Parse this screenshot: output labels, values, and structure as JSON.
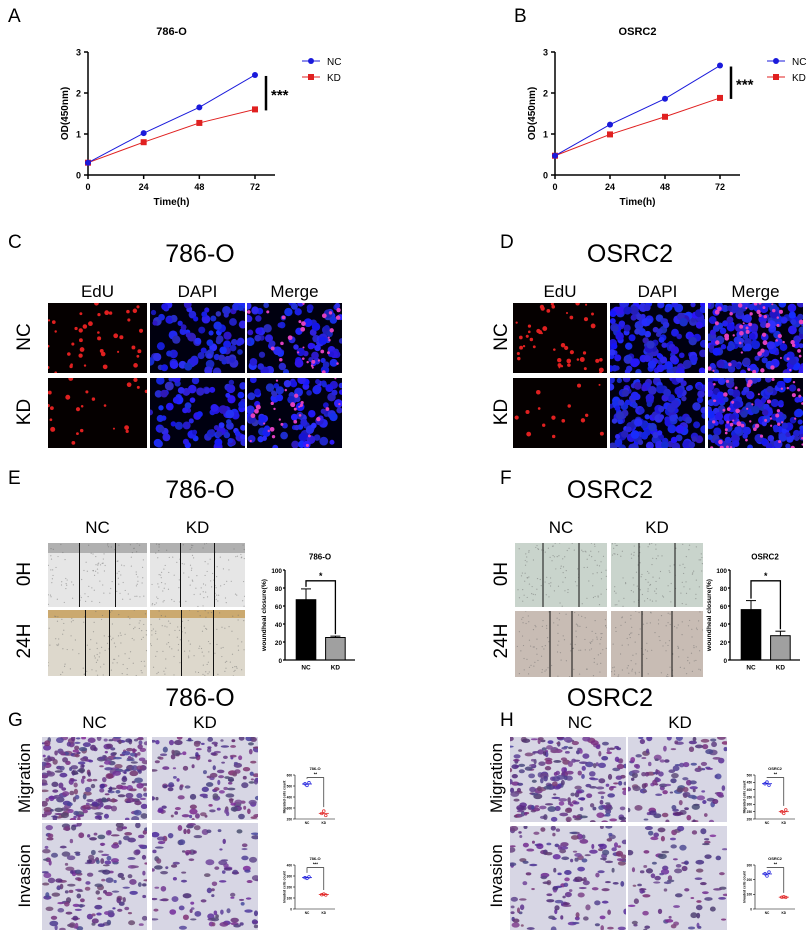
{
  "panels": {
    "A": {
      "label": "A"
    },
    "B": {
      "label": "B"
    },
    "C": {
      "label": "C",
      "title": "786-O",
      "columns": [
        "EdU",
        "DAPI",
        "Merge"
      ],
      "rows": [
        "NC",
        "KD"
      ]
    },
    "D": {
      "label": "D",
      "title": "OSRC2",
      "columns": [
        "EdU",
        "DAPI",
        "Merge"
      ],
      "rows": [
        "NC",
        "KD"
      ]
    },
    "E": {
      "label": "E",
      "title": "786-O",
      "columns": [
        "NC",
        "KD"
      ],
      "rows": [
        "0H",
        "24H"
      ]
    },
    "F": {
      "label": "F",
      "title": "OSRC2",
      "columns": [
        "NC",
        "KD"
      ],
      "rows": [
        "0H",
        "24H"
      ]
    },
    "G": {
      "label": "G",
      "title": "786-O",
      "columns": [
        "NC",
        "KD"
      ],
      "rows": [
        "Migration",
        "Invasion"
      ]
    },
    "H": {
      "label": "H",
      "title": "OSRC2",
      "columns": [
        "NC",
        "KD"
      ],
      "rows": [
        "Migration",
        "Invasion"
      ]
    }
  },
  "colors": {
    "NC": "#1a1adb",
    "KD": "#e02020",
    "bar_NC": "#000000",
    "bar_KD": "#a0a0a0"
  },
  "chart_data": [
    {
      "id": "A",
      "type": "line",
      "title": "786-O",
      "xlabel": "Time(h)",
      "ylabel": "OD(450nm)",
      "x": [
        0,
        24,
        48,
        72
      ],
      "xticks": [
        "0",
        "24",
        "48",
        "72"
      ],
      "ylim": [
        0,
        3
      ],
      "yticks": [
        "0",
        "1",
        "2",
        "3"
      ],
      "series": [
        {
          "name": "NC",
          "values": [
            0.3,
            1.02,
            1.65,
            2.44
          ],
          "marker": "circle"
        },
        {
          "name": "KD",
          "values": [
            0.3,
            0.8,
            1.27,
            1.6
          ],
          "marker": "square"
        }
      ],
      "significance": "***",
      "legend": "top-right",
      "grid": false
    },
    {
      "id": "B",
      "type": "line",
      "title": "OSRC2",
      "xlabel": "Time(h)",
      "ylabel": "OD(450nm)",
      "x": [
        0,
        24,
        48,
        72
      ],
      "xticks": [
        "0",
        "24",
        "48",
        "72"
      ],
      "ylim": [
        0,
        3
      ],
      "yticks": [
        "0",
        "1",
        "2",
        "3"
      ],
      "series": [
        {
          "name": "NC",
          "values": [
            0.47,
            1.23,
            1.86,
            2.67
          ],
          "marker": "circle"
        },
        {
          "name": "KD",
          "values": [
            0.47,
            0.99,
            1.42,
            1.88
          ],
          "marker": "square"
        }
      ],
      "significance": "***",
      "legend": "top-right",
      "grid": false
    },
    {
      "id": "E",
      "type": "bar",
      "title": "786-O",
      "ylabel": "woundheal closure(%)",
      "categories": [
        "NC",
        "KD"
      ],
      "values": [
        67,
        25
      ],
      "errors": [
        12,
        1.5
      ],
      "ylim": [
        0,
        100
      ],
      "yticks": [
        "0",
        "20",
        "40",
        "60",
        "80",
        "100"
      ],
      "significance": "*"
    },
    {
      "id": "F",
      "type": "bar",
      "title": "OSRC2",
      "ylabel": "woundheal closure(%)",
      "categories": [
        "NC",
        "KD"
      ],
      "values": [
        56,
        27
      ],
      "errors": [
        10,
        5
      ],
      "ylim": [
        0,
        100
      ],
      "yticks": [
        "0",
        "20",
        "40",
        "60",
        "80",
        "100"
      ],
      "significance": "*"
    },
    {
      "id": "G1",
      "type": "scatter",
      "title": "786-O",
      "ylabel": "Migrated cells count",
      "categories": [
        "NC",
        "KD"
      ],
      "points": [
        [
          520,
          505,
          530
        ],
        [
          250,
          272,
          232
        ]
      ],
      "ylim": [
        200,
        600
      ],
      "yticks": [
        "200",
        "300",
        "400",
        "500",
        "600"
      ],
      "significance": "**"
    },
    {
      "id": "G2",
      "type": "scatter",
      "title": "786-O",
      "ylabel": "Invaded cells count",
      "categories": [
        "NC",
        "KD"
      ],
      "points": [
        [
          285,
          278,
          292
        ],
        [
          130,
          136,
          127
        ]
      ],
      "ylim": [
        0,
        400
      ],
      "yticks": [
        "0",
        "100",
        "200",
        "300",
        "400"
      ],
      "significance": "***"
    },
    {
      "id": "H1",
      "type": "scatter",
      "title": "OSRC2",
      "ylabel": "Migrated cells count",
      "categories": [
        "NC",
        "KD"
      ],
      "points": [
        [
          440,
          452,
          430
        ],
        [
          250,
          238,
          262
        ]
      ],
      "ylim": [
        200,
        500
      ],
      "yticks": [
        "200",
        "250",
        "300",
        "350",
        "400",
        "450",
        "500"
      ],
      "significance": "**"
    },
    {
      "id": "H2",
      "type": "scatter",
      "title": "OSRC2",
      "ylabel": "Invaded cells count",
      "categories": [
        "NC",
        "KD"
      ],
      "points": [
        [
          240,
          225,
          252
        ],
        [
          80,
          83,
          79
        ]
      ],
      "ylim": [
        0,
        300
      ],
      "yticks": [
        "0",
        "100",
        "200",
        "300"
      ],
      "significance": "**"
    }
  ]
}
